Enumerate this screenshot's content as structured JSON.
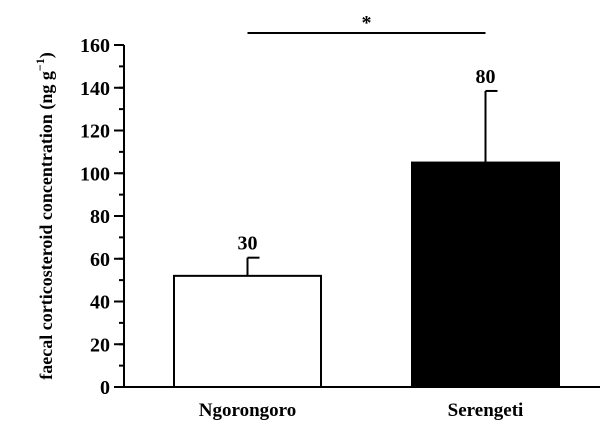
{
  "chart_data": {
    "type": "bar",
    "title": "",
    "xlabel": "",
    "ylabel": "faecal corticosteroid concentration (ng g",
    "ylabel_sup": "−1",
    "ylabel_close": ")",
    "ylim": [
      0,
      160
    ],
    "yticks": [
      0,
      20,
      40,
      60,
      80,
      100,
      120,
      140,
      160
    ],
    "ytick_labels": [
      "0",
      "20",
      "40",
      "60",
      "80",
      "100",
      "120",
      "140",
      "160"
    ],
    "minor_tick_step": 10,
    "categories": [
      "Ngorongoro",
      "Serengeti"
    ],
    "values": [
      52,
      105
    ],
    "error_upper": [
      60.5,
      138.5
    ],
    "sample_sizes": [
      "30",
      "80"
    ],
    "bar_colors": [
      "#ffffff",
      "#000000"
    ],
    "significance": {
      "label": "*",
      "between": [
        0,
        1
      ]
    },
    "grid": false
  }
}
